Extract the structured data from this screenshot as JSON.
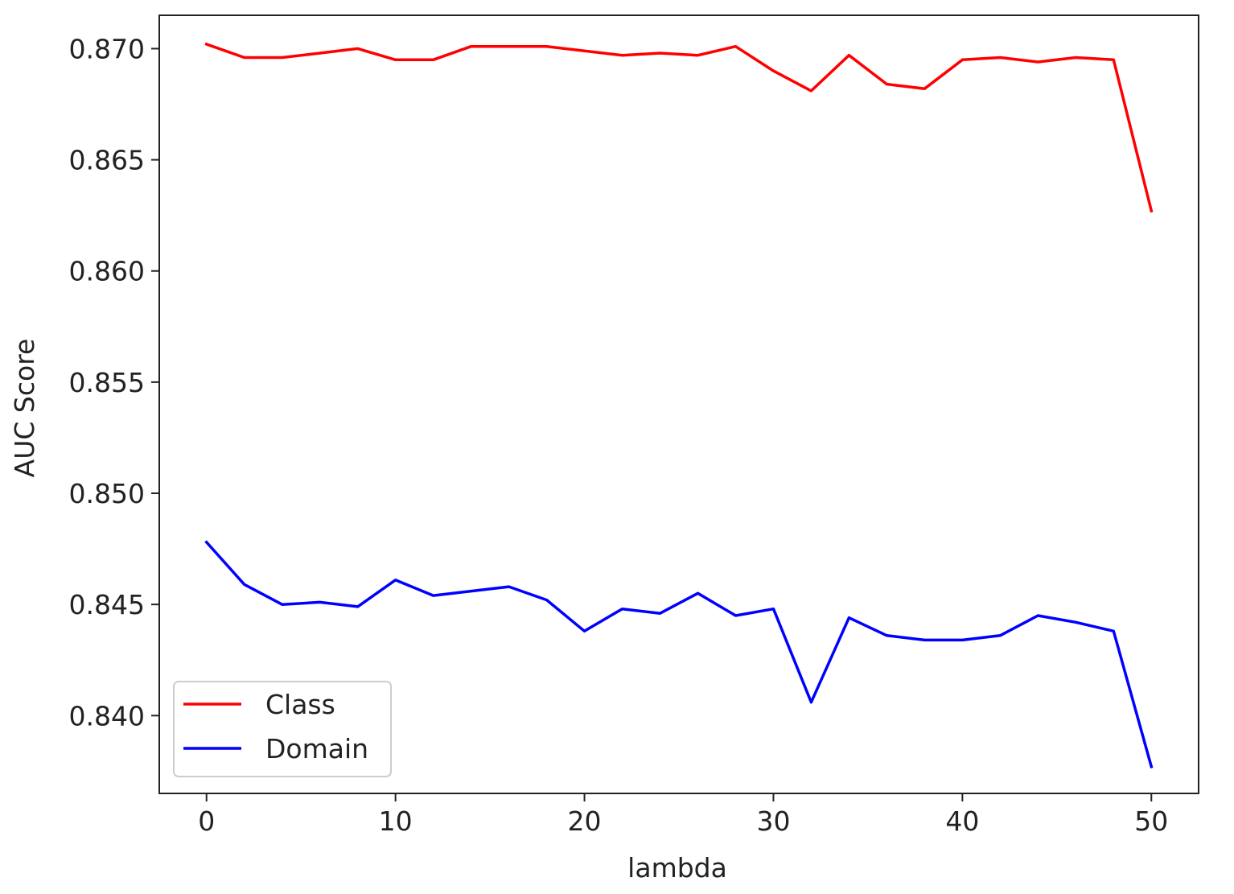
{
  "chart_data": {
    "type": "line",
    "title": "",
    "xlabel": "lambda",
    "ylabel": "AUC Score",
    "xlim": [
      -2.5,
      52.5
    ],
    "ylim": [
      0.8365,
      0.8715
    ],
    "x_ticks": [
      "0",
      "10",
      "20",
      "30",
      "40",
      "50"
    ],
    "y_ticks": [
      "0.840",
      "0.845",
      "0.850",
      "0.855",
      "0.860",
      "0.865",
      "0.870"
    ],
    "grid": false,
    "legend_position": "lower-left",
    "x": [
      0,
      2,
      4,
      6,
      8,
      10,
      12,
      14,
      16,
      18,
      20,
      22,
      24,
      26,
      28,
      30,
      32,
      34,
      36,
      38,
      40,
      42,
      44,
      46,
      48,
      50
    ],
    "series": [
      {
        "name": "Class",
        "color": "#ff0000",
        "values": [
          0.8702,
          0.8696,
          0.8696,
          0.8698,
          0.87,
          0.8695,
          0.8695,
          0.8701,
          0.8701,
          0.8701,
          0.8699,
          0.8697,
          0.8698,
          0.8697,
          0.8701,
          0.869,
          0.8681,
          0.8697,
          0.8684,
          0.8682,
          0.8695,
          0.8696,
          0.8694,
          0.8696,
          0.8695,
          0.8627
        ]
      },
      {
        "name": "Domain",
        "color": "#0000ff",
        "values": [
          0.8478,
          0.8459,
          0.845,
          0.8451,
          0.8449,
          0.8461,
          0.8454,
          0.8456,
          0.8458,
          0.8452,
          0.8438,
          0.8448,
          0.8446,
          0.8455,
          0.8445,
          0.8448,
          0.8406,
          0.8444,
          0.8436,
          0.8434,
          0.8434,
          0.8436,
          0.8445,
          0.8442,
          0.8438,
          0.8377
        ]
      }
    ]
  }
}
